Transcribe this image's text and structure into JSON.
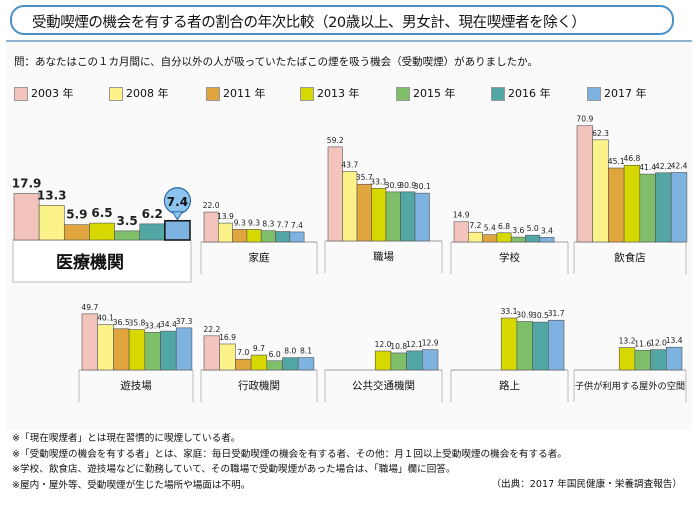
{
  "title": "受動喫煙の機会を有する者の割合の年次比較（20歳以上、男女計、現在喫煙者を除く）",
  "question": "問：あなたはこの１カ月間に、自分以外の人が吸っていたたばこの煙を吸う機会（受動喫煙）がありましたか。",
  "legend": [
    {
      "label": "2003 年",
      "color": "#f2c4bc"
    },
    {
      "label": "2008 年",
      "color": "#fbf28a"
    },
    {
      "label": "2011 年",
      "color": "#e0a53c"
    },
    {
      "label": "2013 年",
      "color": "#d7d800"
    },
    {
      "label": "2015 年",
      "color": "#7fbf6a"
    },
    {
      "label": "2016 年",
      "color": "#52a6a4"
    },
    {
      "label": "2017 年",
      "color": "#7eb2e0"
    }
  ],
  "chart_data": {
    "type": "bar",
    "series_names": [
      "2003 年",
      "2008 年",
      "2011 年",
      "2013 年",
      "2015 年",
      "2016 年",
      "2017 年"
    ],
    "groups": [
      {
        "category": "医療機関",
        "values": [
          17.9,
          13.3,
          5.9,
          6.5,
          3.5,
          6.2,
          7.4
        ],
        "labels": [
          "17.9",
          "13.3",
          "5.9",
          "6.5",
          "3.5",
          "6.2",
          "7.4"
        ]
      },
      {
        "category": "家庭",
        "values": [
          22.0,
          13.9,
          9.3,
          9.3,
          8.3,
          7.7,
          7.4
        ],
        "labels": [
          "22.0",
          "13.9",
          "9.3",
          "9.3",
          "8.3",
          "7.7",
          "7.4"
        ]
      },
      {
        "category": "職場",
        "values": [
          59.2,
          43.7,
          35.7,
          33.1,
          30.9,
          30.9,
          30.1
        ],
        "labels": [
          "59.2",
          "43.7",
          "35.7",
          "33.1",
          "30.9",
          "30.9",
          "30.1"
        ]
      },
      {
        "category": "学校",
        "values": [
          14.9,
          7.2,
          5.4,
          6.8,
          3.6,
          5.0,
          3.4
        ],
        "labels": [
          "14.9",
          "7.2",
          "5.4",
          "6.8",
          "3.6",
          "5.0",
          "3.4"
        ]
      },
      {
        "category": "飲食店",
        "values": [
          70.9,
          62.3,
          45.1,
          46.8,
          41.4,
          42.2,
          42.4
        ],
        "labels": [
          "70.9",
          "62.3",
          "45.1",
          "46.8",
          "41.4",
          "42.2",
          "42.4"
        ]
      },
      {
        "category": "遊技場",
        "values": [
          49.7,
          40.1,
          36.5,
          35.8,
          33.4,
          34.4,
          37.3
        ],
        "labels": [
          "49.7",
          "40.1",
          "36.5",
          "35.8",
          "33.4",
          "34.4",
          "37.3"
        ]
      },
      {
        "category": "行政機関",
        "values": [
          22.2,
          16.9,
          7.0,
          9.7,
          6.0,
          8.0,
          8.1
        ],
        "labels": [
          "22.2",
          "16.9",
          "7.0",
          "9.7",
          "6.0",
          "8.0",
          "8.1"
        ]
      },
      {
        "category": "公共交通機関",
        "values": [
          null,
          null,
          null,
          12.0,
          10.8,
          12.1,
          12.9
        ],
        "labels": [
          "",
          "",
          "",
          "12.0",
          "10.8",
          "12.1",
          "12.9"
        ]
      },
      {
        "category": "路上",
        "values": [
          null,
          null,
          null,
          33.1,
          30.9,
          30.5,
          31.7
        ],
        "labels": [
          "",
          "",
          "",
          "33.1",
          "30.9",
          "30.5",
          "31.7"
        ]
      },
      {
        "category": "子供が利用する屋外の空間",
        "values": [
          null,
          null,
          null,
          13.2,
          11.6,
          12.0,
          13.4
        ],
        "labels": [
          "",
          "",
          "",
          "13.2",
          "11.6",
          "12.0",
          "13.4"
        ]
      }
    ],
    "highlight": {
      "group": "医療機関",
      "series": "2017 年",
      "value": "7.4"
    }
  },
  "notes": [
    "※「現在喫煙者」とは現在習慣的に喫煙している者。",
    "※「受動喫煙の機会を有する者」とは、家庭：毎日受動喫煙の機会を有する者、その他：月１回以上受動喫煙の機会を有する者。",
    "※学校、飲食店、遊技場などに勤務していて、その職場で受動喫煙があった場合は、「職場」欄に回答。",
    "※屋内・屋外等、受動喫煙が生じた場所や場面は不明。"
  ],
  "source": "（出典：2017 年国民健康・栄養調査報告）"
}
